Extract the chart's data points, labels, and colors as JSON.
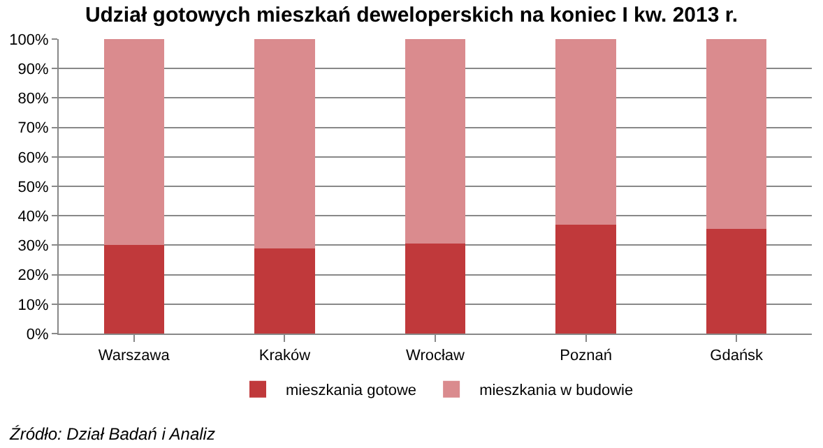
{
  "chart_data": {
    "type": "bar",
    "title": "Udział gotowych mieszkań deweloperskich na koniec I kw. 2013 r.",
    "categories": [
      "Warszawa",
      "Kraków",
      "Wrocław",
      "Poznań",
      "Gdańsk"
    ],
    "stacked": true,
    "series": [
      {
        "name": "mieszkania gotowe",
        "color": "#c0393b",
        "values": [
          30,
          29,
          30.5,
          37,
          35.5
        ]
      },
      {
        "name": "mieszkania w budowie",
        "color": "#da8b8e",
        "values": [
          70,
          71,
          69.5,
          63,
          64.5
        ]
      }
    ],
    "ylim": [
      0,
      100
    ],
    "yticks": [
      {
        "value": 0,
        "label": "0%"
      },
      {
        "value": 10,
        "label": "10%"
      },
      {
        "value": 20,
        "label": "20%"
      },
      {
        "value": 30,
        "label": "30%"
      },
      {
        "value": 40,
        "label": "40%"
      },
      {
        "value": 50,
        "label": "50%"
      },
      {
        "value": 60,
        "label": "60%"
      },
      {
        "value": 70,
        "label": "70%"
      },
      {
        "value": 80,
        "label": "80%"
      },
      {
        "value": 90,
        "label": "90%"
      },
      {
        "value": 100,
        "label": "100%"
      }
    ],
    "grid": "y",
    "legend": "bottom",
    "annotations": [
      "Źródło: Dział Badań i Analiz"
    ]
  }
}
